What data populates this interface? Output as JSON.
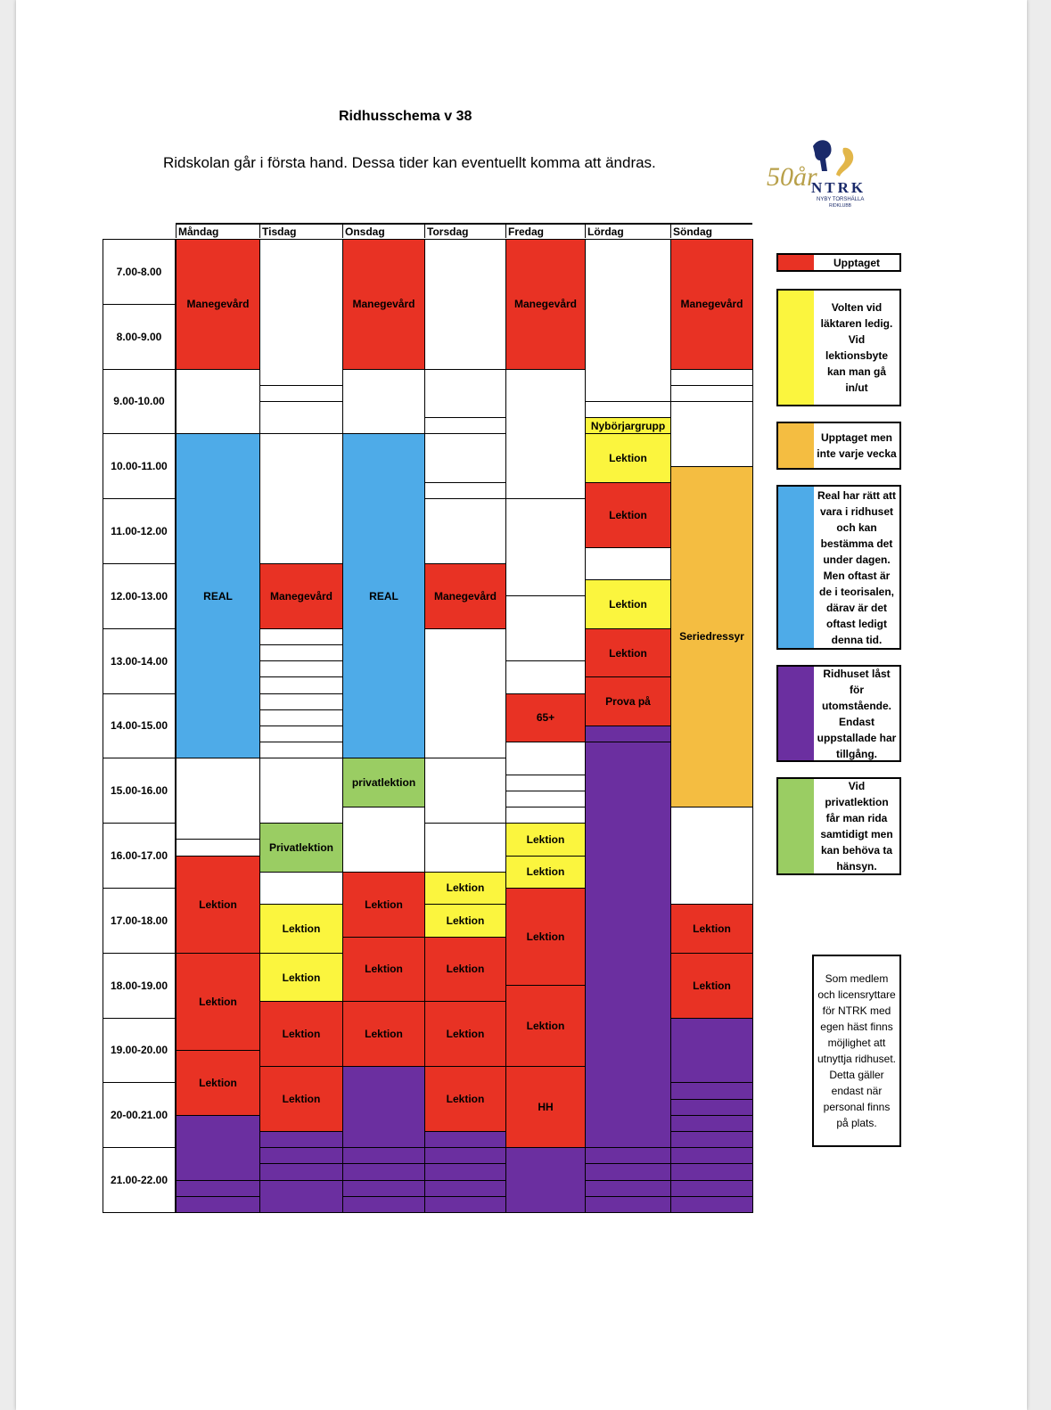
{
  "title": "Ridhusschema v 38",
  "subtitle": "Ridskolan går i första hand. Dessa tider kan eventuellt komma att ändras.",
  "logo": {
    "anniversary": "50år",
    "club": "NTRK",
    "subline1": "NYBY TORSHÄLLA",
    "subline2": "RIDKLUBB"
  },
  "colors": {
    "red": "#e83224",
    "yellow": "#fbf53e",
    "orange": "#f4bd41",
    "blue": "#4eabe8",
    "purple": "#6b2fa0",
    "green": "#9acd63",
    "white": "#ffffff"
  },
  "days": [
    "Måndag",
    "Tisdag",
    "Onsdag",
    "Torsdag",
    "Fredag",
    "Lördag",
    "Söndag"
  ],
  "times": [
    "7.00-8.00",
    "8.00-9.00",
    "9.00-10.00",
    "10.00-11.00",
    "11.00-12.00",
    "12.00-13.00",
    "13.00-14.00",
    "14.00-15.00",
    "15.00-16.00",
    "16.00-17.00",
    "17.00-18.00",
    "18.00-19.00",
    "19.00-20.00",
    "20-00.21.00",
    "21.00-22.00"
  ],
  "schedule": [
    [
      {
        "start": 7,
        "end": 9,
        "color": "red",
        "label": "Manegevård"
      },
      {
        "start": 9,
        "end": 10,
        "color": "white",
        "label": ""
      },
      {
        "start": 10,
        "end": 15,
        "color": "blue",
        "label": "REAL"
      },
      {
        "start": 15,
        "end": 16.25,
        "color": "white",
        "label": ""
      },
      {
        "start": 16.25,
        "end": 16.5,
        "color": "white",
        "label": ""
      },
      {
        "start": 16.5,
        "end": 18,
        "color": "red",
        "label": "Lektion"
      },
      {
        "start": 18,
        "end": 19.5,
        "color": "red",
        "label": "Lektion"
      },
      {
        "start": 19.5,
        "end": 20.5,
        "color": "red",
        "label": "Lektion"
      },
      {
        "start": 20.5,
        "end": 21.5,
        "color": "purple",
        "label": ""
      },
      {
        "start": 21.5,
        "end": 21.75,
        "color": "purple",
        "label": ""
      },
      {
        "start": 21.75,
        "end": 22,
        "color": "purple",
        "label": ""
      }
    ],
    [
      {
        "start": 7,
        "end": 9.25,
        "color": "white",
        "label": ""
      },
      {
        "start": 9.25,
        "end": 9.5,
        "color": "white",
        "label": ""
      },
      {
        "start": 9.5,
        "end": 10,
        "color": "white",
        "label": ""
      },
      {
        "start": 10,
        "end": 12,
        "color": "white",
        "label": ""
      },
      {
        "start": 12,
        "end": 13,
        "color": "red",
        "label": "Manegevård"
      },
      {
        "start": 13,
        "end": 13.25,
        "color": "white",
        "label": ""
      },
      {
        "start": 13.25,
        "end": 13.5,
        "color": "white",
        "label": ""
      },
      {
        "start": 13.5,
        "end": 13.75,
        "color": "white",
        "label": ""
      },
      {
        "start": 13.75,
        "end": 14,
        "color": "white",
        "label": ""
      },
      {
        "start": 14,
        "end": 14.25,
        "color": "white",
        "label": ""
      },
      {
        "start": 14.25,
        "end": 14.5,
        "color": "white",
        "label": ""
      },
      {
        "start": 14.5,
        "end": 14.75,
        "color": "white",
        "label": ""
      },
      {
        "start": 14.75,
        "end": 15,
        "color": "white",
        "label": ""
      },
      {
        "start": 15,
        "end": 16,
        "color": "white",
        "label": ""
      },
      {
        "start": 16,
        "end": 16.75,
        "color": "green",
        "label": "Privatlektion"
      },
      {
        "start": 16.75,
        "end": 17.25,
        "color": "white",
        "label": ""
      },
      {
        "start": 17.25,
        "end": 18,
        "color": "yellow",
        "label": "Lektion"
      },
      {
        "start": 18,
        "end": 18.75,
        "color": "yellow",
        "label": "Lektion"
      },
      {
        "start": 18.75,
        "end": 19.75,
        "color": "red",
        "label": "Lektion"
      },
      {
        "start": 19.75,
        "end": 20.75,
        "color": "red",
        "label": "Lektion"
      },
      {
        "start": 20.75,
        "end": 21,
        "color": "purple",
        "label": ""
      },
      {
        "start": 21,
        "end": 21.25,
        "color": "purple",
        "label": ""
      },
      {
        "start": 21.25,
        "end": 21.5,
        "color": "purple",
        "label": ""
      },
      {
        "start": 21.5,
        "end": 22,
        "color": "purple",
        "label": ""
      }
    ],
    [
      {
        "start": 7,
        "end": 9,
        "color": "red",
        "label": "Manegevård"
      },
      {
        "start": 9,
        "end": 10,
        "color": "white",
        "label": ""
      },
      {
        "start": 10,
        "end": 15,
        "color": "blue",
        "label": "REAL"
      },
      {
        "start": 15,
        "end": 15.75,
        "color": "green",
        "label": "privatlektion"
      },
      {
        "start": 15.75,
        "end": 16.75,
        "color": "white",
        "label": ""
      },
      {
        "start": 16.75,
        "end": 17.75,
        "color": "red",
        "label": "Lektion"
      },
      {
        "start": 17.75,
        "end": 18.75,
        "color": "red",
        "label": "Lektion"
      },
      {
        "start": 18.75,
        "end": 19.75,
        "color": "red",
        "label": "Lektion"
      },
      {
        "start": 19.75,
        "end": 21,
        "color": "purple",
        "label": ""
      },
      {
        "start": 21,
        "end": 21.25,
        "color": "purple",
        "label": ""
      },
      {
        "start": 21.25,
        "end": 21.5,
        "color": "purple",
        "label": ""
      },
      {
        "start": 21.5,
        "end": 21.75,
        "color": "purple",
        "label": ""
      },
      {
        "start": 21.75,
        "end": 22,
        "color": "purple",
        "label": ""
      }
    ],
    [
      {
        "start": 7,
        "end": 9,
        "color": "white",
        "label": ""
      },
      {
        "start": 9,
        "end": 9.75,
        "color": "white",
        "label": ""
      },
      {
        "start": 9.75,
        "end": 10,
        "color": "white",
        "label": ""
      },
      {
        "start": 10,
        "end": 10.75,
        "color": "white",
        "label": ""
      },
      {
        "start": 10.75,
        "end": 11,
        "color": "white",
        "label": ""
      },
      {
        "start": 11,
        "end": 12,
        "color": "white",
        "label": ""
      },
      {
        "start": 12,
        "end": 13,
        "color": "red",
        "label": "Manegevård"
      },
      {
        "start": 13,
        "end": 15,
        "color": "white",
        "label": ""
      },
      {
        "start": 15,
        "end": 16,
        "color": "white",
        "label": ""
      },
      {
        "start": 16,
        "end": 16.75,
        "color": "white",
        "label": ""
      },
      {
        "start": 16.75,
        "end": 17.25,
        "color": "yellow",
        "label": "Lektion"
      },
      {
        "start": 17.25,
        "end": 17.75,
        "color": "yellow",
        "label": "Lektion"
      },
      {
        "start": 17.75,
        "end": 18.75,
        "color": "red",
        "label": "Lektion"
      },
      {
        "start": 18.75,
        "end": 19.75,
        "color": "red",
        "label": "Lektion"
      },
      {
        "start": 19.75,
        "end": 20.75,
        "color": "red",
        "label": "Lektion"
      },
      {
        "start": 20.75,
        "end": 21,
        "color": "purple",
        "label": ""
      },
      {
        "start": 21,
        "end": 21.25,
        "color": "purple",
        "label": ""
      },
      {
        "start": 21.25,
        "end": 21.5,
        "color": "purple",
        "label": ""
      },
      {
        "start": 21.5,
        "end": 21.75,
        "color": "purple",
        "label": ""
      },
      {
        "start": 21.75,
        "end": 22,
        "color": "purple",
        "label": ""
      }
    ],
    [
      {
        "start": 7,
        "end": 9,
        "color": "red",
        "label": "Manegevård"
      },
      {
        "start": 9,
        "end": 11,
        "color": "white",
        "label": ""
      },
      {
        "start": 11,
        "end": 12.5,
        "color": "white",
        "label": ""
      },
      {
        "start": 12.5,
        "end": 13.5,
        "color": "white",
        "label": ""
      },
      {
        "start": 13.5,
        "end": 14,
        "color": "white",
        "label": ""
      },
      {
        "start": 14,
        "end": 14.75,
        "color": "red",
        "label": "65+"
      },
      {
        "start": 14.75,
        "end": 15.25,
        "color": "white",
        "label": ""
      },
      {
        "start": 15.25,
        "end": 15.5,
        "color": "white",
        "label": ""
      },
      {
        "start": 15.5,
        "end": 15.75,
        "color": "white",
        "label": ""
      },
      {
        "start": 15.75,
        "end": 16,
        "color": "white",
        "label": ""
      },
      {
        "start": 16,
        "end": 16.5,
        "color": "yellow",
        "label": "Lektion"
      },
      {
        "start": 16.5,
        "end": 17,
        "color": "yellow",
        "label": "Lektion"
      },
      {
        "start": 17,
        "end": 18.5,
        "color": "red",
        "label": "Lektion"
      },
      {
        "start": 18.5,
        "end": 19.75,
        "color": "red",
        "label": "Lektion"
      },
      {
        "start": 19.75,
        "end": 21,
        "color": "red",
        "label": "HH"
      },
      {
        "start": 21,
        "end": 22,
        "color": "purple",
        "label": ""
      }
    ],
    [
      {
        "start": 7,
        "end": 9.5,
        "color": "white",
        "label": ""
      },
      {
        "start": 9.5,
        "end": 9.75,
        "color": "white",
        "label": ""
      },
      {
        "start": 9.75,
        "end": 10,
        "color": "yellow",
        "label": "Nybörjargrupp"
      },
      {
        "start": 10,
        "end": 10.75,
        "color": "yellow",
        "label": "Lektion"
      },
      {
        "start": 10.75,
        "end": 11.75,
        "color": "red",
        "label": "Lektion"
      },
      {
        "start": 11.75,
        "end": 12.25,
        "color": "white",
        "label": ""
      },
      {
        "start": 12.25,
        "end": 13,
        "color": "yellow",
        "label": "Lektion"
      },
      {
        "start": 13,
        "end": 13.75,
        "color": "red",
        "label": "Lektion"
      },
      {
        "start": 13.75,
        "end": 14.5,
        "color": "red",
        "label": "Prova på"
      },
      {
        "start": 14.5,
        "end": 14.75,
        "color": "purple",
        "label": ""
      },
      {
        "start": 14.75,
        "end": 21,
        "color": "purple",
        "label": ""
      },
      {
        "start": 21,
        "end": 21.25,
        "color": "purple",
        "label": ""
      },
      {
        "start": 21.25,
        "end": 21.5,
        "color": "purple",
        "label": ""
      },
      {
        "start": 21.5,
        "end": 21.75,
        "color": "purple",
        "label": ""
      },
      {
        "start": 21.75,
        "end": 22,
        "color": "purple",
        "label": ""
      }
    ],
    [
      {
        "start": 7,
        "end": 9,
        "color": "red",
        "label": "Manegevård"
      },
      {
        "start": 9,
        "end": 9.25,
        "color": "white",
        "label": ""
      },
      {
        "start": 9.25,
        "end": 9.5,
        "color": "white",
        "label": ""
      },
      {
        "start": 9.5,
        "end": 10.5,
        "color": "white",
        "label": ""
      },
      {
        "start": 10.5,
        "end": 15.75,
        "color": "orange",
        "label": "Seriedressyr"
      },
      {
        "start": 15.75,
        "end": 17.25,
        "color": "white",
        "label": ""
      },
      {
        "start": 17.25,
        "end": 18,
        "color": "red",
        "label": "Lektion"
      },
      {
        "start": 18,
        "end": 19,
        "color": "red",
        "label": "Lektion"
      },
      {
        "start": 19,
        "end": 20,
        "color": "purple",
        "label": ""
      },
      {
        "start": 20,
        "end": 20.25,
        "color": "purple",
        "label": ""
      },
      {
        "start": 20.25,
        "end": 20.5,
        "color": "purple",
        "label": ""
      },
      {
        "start": 20.5,
        "end": 20.75,
        "color": "purple",
        "label": ""
      },
      {
        "start": 20.75,
        "end": 21,
        "color": "purple",
        "label": ""
      },
      {
        "start": 21,
        "end": 21.25,
        "color": "purple",
        "label": ""
      },
      {
        "start": 21.25,
        "end": 21.5,
        "color": "purple",
        "label": ""
      },
      {
        "start": 21.5,
        "end": 21.75,
        "color": "purple",
        "label": ""
      },
      {
        "start": 21.75,
        "end": 22,
        "color": "purple",
        "label": ""
      }
    ]
  ],
  "legend": [
    {
      "color": "red",
      "text": "Upptaget"
    },
    {
      "color": "yellow",
      "text": "Volten vid läktaren ledig. Vid lektionsbyte kan man gå in/ut"
    },
    {
      "color": "orange",
      "text": "Upptaget men inte varje vecka"
    },
    {
      "color": "blue",
      "text": "Real har rätt att vara i ridhuset och kan bestämma det under dagen. Men oftast är de i teorisalen, därav är det oftast ledigt denna tid."
    },
    {
      "color": "purple",
      "text": "Ridhuset låst för utomstående. Endast uppstallade har tillgång."
    },
    {
      "color": "green",
      "text": "Vid privatlektion får man rida samtidigt men kan behöva ta hänsyn."
    }
  ],
  "note": "Som medlem och licensryttare för NTRK med egen häst finns möjlighet att utnyttja ridhuset. Detta gäller endast när personal finns på plats."
}
